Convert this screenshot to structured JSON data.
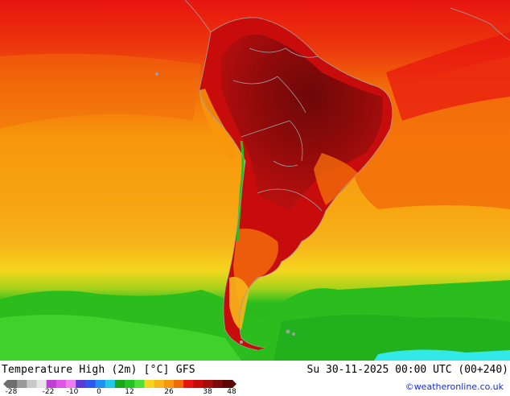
{
  "map": {
    "region": "South America",
    "field": "Temperature High (2m)",
    "colors": {
      "ocean_hot": "#e8140f",
      "ocean_warm": "#f26b0a",
      "ocean_orange": "#f7970c",
      "ocean_amber": "#f7b51a",
      "ocean_yellow": "#f4d61e",
      "cold_green": "#2bbd1e",
      "cold_bright": "#4ee036",
      "cold_cyan": "#33e8e8",
      "land_extreme": "#7d0a0a",
      "land_very_hot": "#a50c0c",
      "land_hot": "#cc1010",
      "borders": "#a0a0a0"
    }
  },
  "footer": {
    "title": "Temperature High (2m) [°C] GFS",
    "datetime": "Su 30-11-2025 00:00 UTC (00+240)",
    "credit": "©weatheronline.co.uk",
    "legend_ticks": [
      "-28",
      "-22",
      "-10",
      "0",
      "12",
      "26",
      "38",
      "48"
    ],
    "legend_colors": [
      "#6e6e6e",
      "#9a9a9a",
      "#c8c8c8",
      "#e6e6e6",
      "#bf3fd6",
      "#e055e8",
      "#f07cf0",
      "#5a3ad6",
      "#2e57f0",
      "#1e90f0",
      "#22c8e6",
      "#1aa81a",
      "#24c224",
      "#4ee036",
      "#f4d61e",
      "#f7b51a",
      "#f7970c",
      "#f26b0a",
      "#e8140f",
      "#c80c0c",
      "#a50c0c",
      "#7d0a0a",
      "#5c0606"
    ]
  }
}
